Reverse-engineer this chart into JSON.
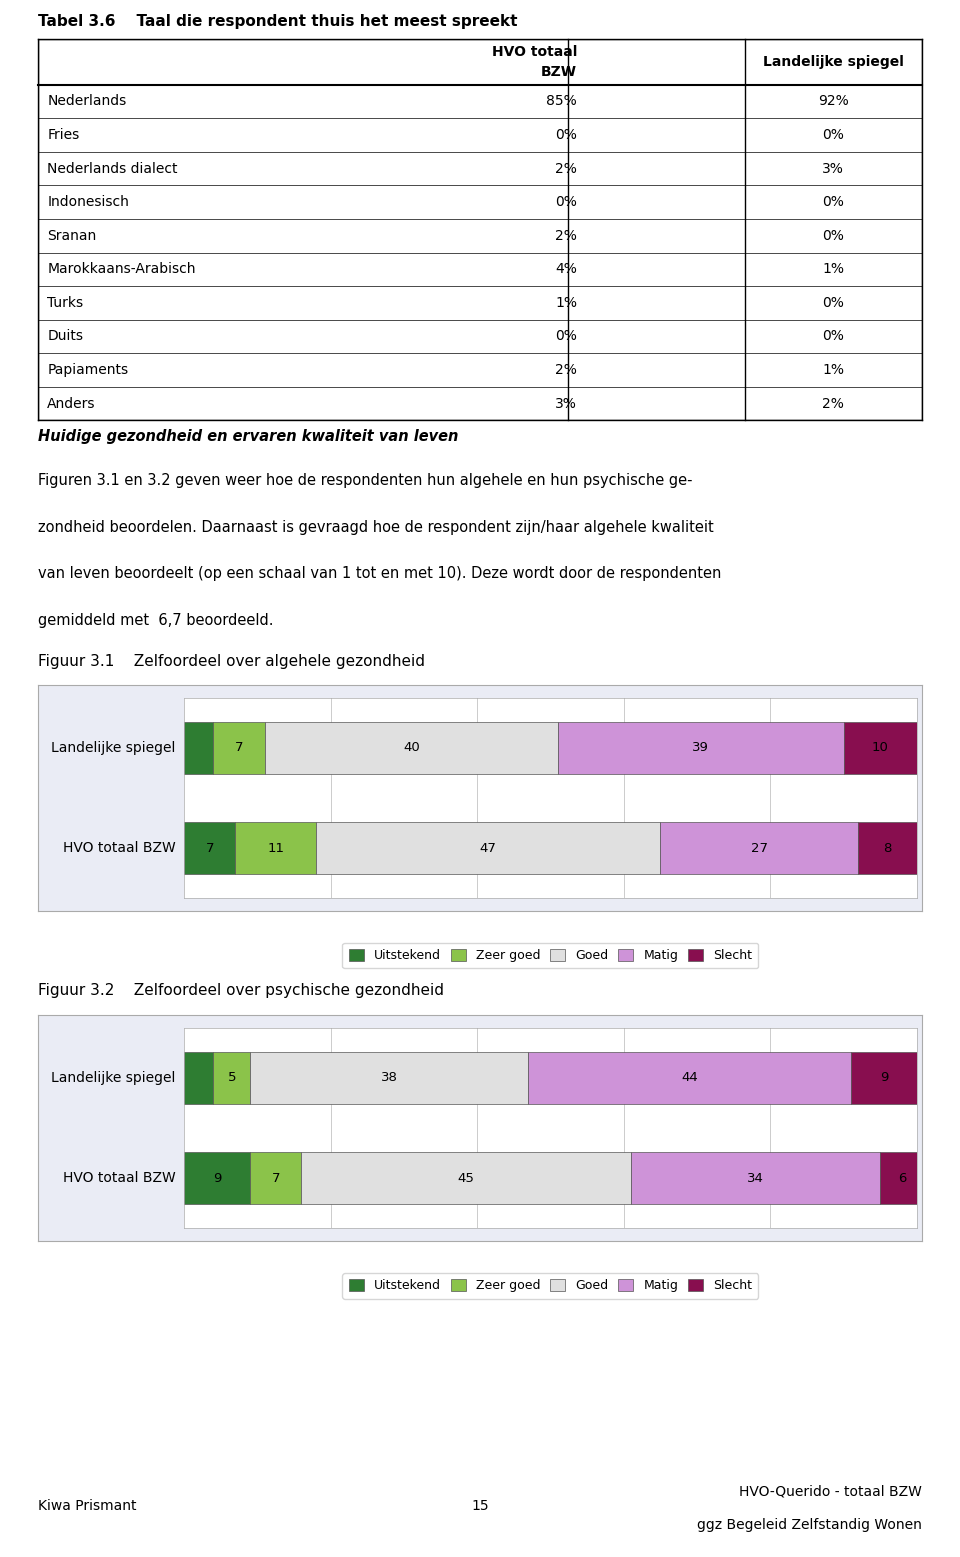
{
  "title_table": "Tabel 3.6",
  "title_table_text": "Taal die respondent thuis het meest spreekt",
  "table_col1": [
    "Nederlands",
    "Fries",
    "Nederlands dialect",
    "Indonesisch",
    "Sranan",
    "Marokkaans-Arabisch",
    "Turks",
    "Duits",
    "Papiaments",
    "Anders"
  ],
  "table_col2_header": [
    "HVO totaal",
    "BZW"
  ],
  "table_col3_header": "Landelijke spiegel",
  "table_col2": [
    "85%",
    "0%",
    "2%",
    "0%",
    "2%",
    "4%",
    "1%",
    "0%",
    "2%",
    "3%"
  ],
  "table_col3": [
    "92%",
    "0%",
    "3%",
    "0%",
    "0%",
    "1%",
    "0%",
    "0%",
    "1%",
    "2%"
  ],
  "paragraph_italic": "Huidige gezondheid en ervaren kwaliteit van leven",
  "para_lines": [
    "Figuren 3.1 en 3.2 geven weer hoe de respondenten hun algehele en hun psychische ge-",
    "zondheid beoordelen. Daarnaast is gevraagd hoe de respondent zijn/haar algehele kwaliteit",
    "van leven beoordeelt (op een schaal van 1 tot en met 10). Deze wordt door de respondenten",
    "gemiddeld met  6,7 beoordeeld."
  ],
  "fig1_title_num": "Figuur 3.1",
  "fig1_title_text": "Zelfoordeel over algehele gezondheid",
  "fig1_rows": [
    "Landelijke spiegel",
    "HVO totaal BZW"
  ],
  "fig1_data": {
    "Uitstekend": [
      4,
      7
    ],
    "Zeer goed": [
      7,
      11
    ],
    "Goed": [
      40,
      47
    ],
    "Matig": [
      39,
      27
    ],
    "Slecht": [
      10,
      8
    ]
  },
  "fig2_title_num": "Figuur 3.2",
  "fig2_title_text": "Zelfoordeel over psychische gezondheid",
  "fig2_rows": [
    "Landelijke spiegel",
    "HVO totaal BZW"
  ],
  "fig2_data": {
    "Uitstekend": [
      4,
      9
    ],
    "Zeer goed": [
      5,
      7
    ],
    "Goed": [
      38,
      45
    ],
    "Matig": [
      44,
      34
    ],
    "Slecht": [
      9,
      6
    ]
  },
  "legend_labels": [
    "Uitstekend",
    "Zeer goed",
    "Goed",
    "Matig",
    "Slecht"
  ],
  "bar_colors": {
    "Uitstekend": "#2e7d32",
    "Zeer goed": "#8bc34a",
    "Goed": "#e0e0e0",
    "Matig": "#ce93d8",
    "Slecht": "#880e4f"
  },
  "bar_edge_color": "#555555",
  "footer_left": "Kiwa Prismant",
  "footer_center": "15",
  "footer_right1": "HVO-Querido - totaal BZW",
  "footer_right2": "ggz Begeleid Zelfstandig Wonen",
  "bg_color": "#ffffff",
  "chart_bg_color": "#eaecf5",
  "chart_inner_bg": "#ffffff"
}
